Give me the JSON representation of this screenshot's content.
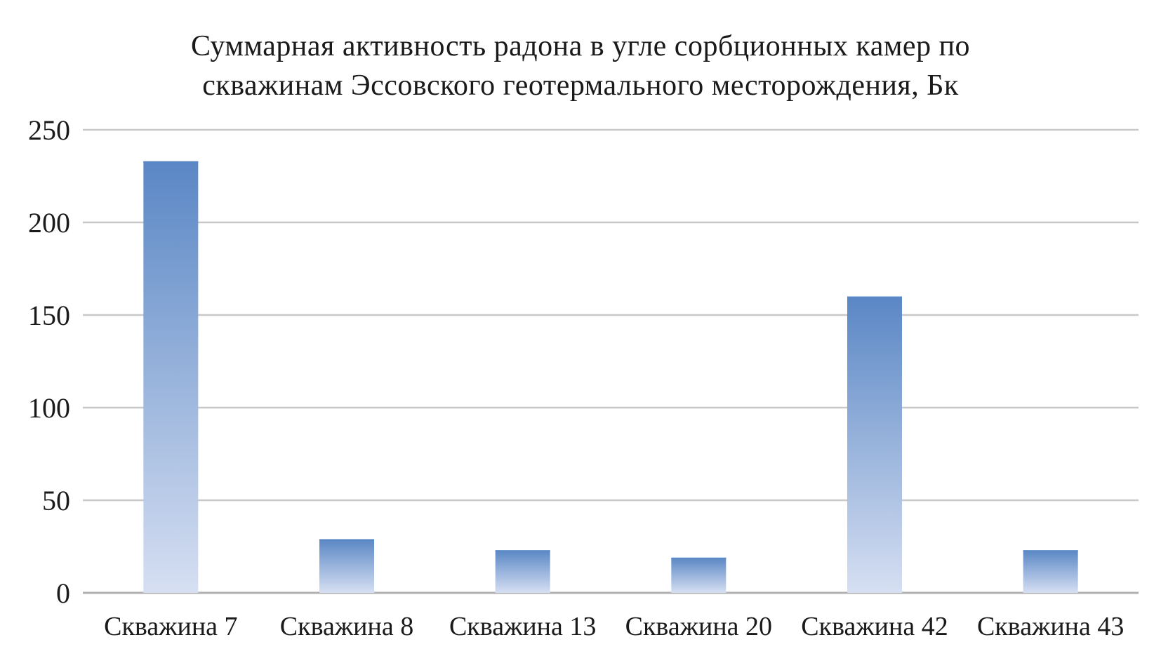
{
  "chart_data": {
    "type": "bar",
    "title_lines": [
      "Суммарная активность радона в угле сорбционных камер по",
      "скважинам Эссовского геотермального месторождения, Бк"
    ],
    "categories": [
      "Скважина 7",
      "Скважина 8",
      "Скважина 13",
      "Скважина 20",
      "Скважина 42",
      "Скважина 43"
    ],
    "values": [
      233,
      29,
      23,
      19,
      160,
      23
    ],
    "ylim": [
      0,
      250
    ],
    "yticks": [
      0,
      50,
      100,
      150,
      200,
      250
    ],
    "grid": true,
    "legend": "none",
    "colors": {
      "bar_top": "#5a87c5",
      "bar_bottom": "#d6dff2",
      "grid": "#c8c8c8",
      "axis": "#b0b0b0",
      "text": "#1a1a1a"
    }
  }
}
